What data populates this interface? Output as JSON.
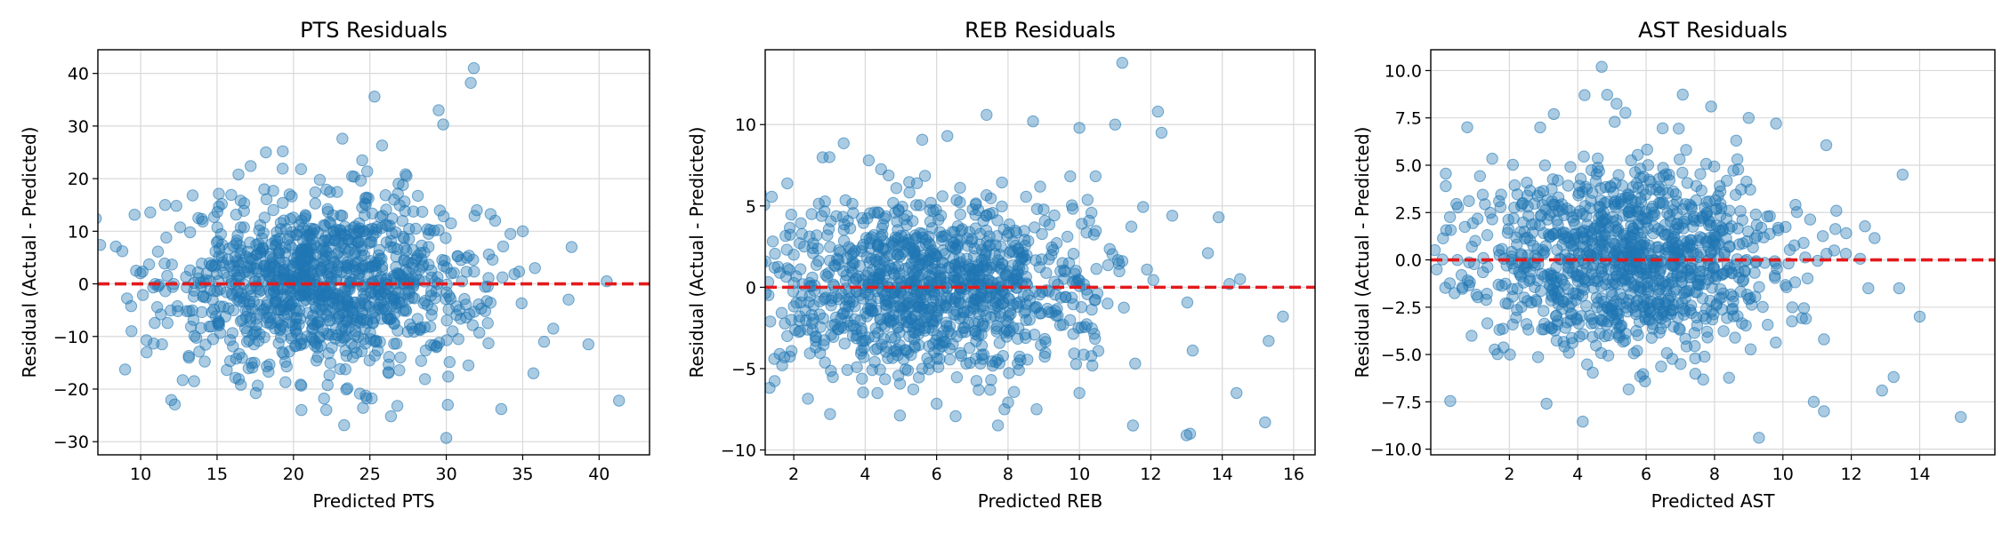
{
  "chart_data": [
    {
      "type": "scatter",
      "title": "PTS Residuals",
      "xlabel": "Predicted PTS",
      "ylabel": "Residual (Actual - Predicted)",
      "xlim": [
        7.2,
        43.3
      ],
      "ylim": [
        -32.5,
        44.5
      ],
      "xticks": [
        10,
        15,
        20,
        25,
        30,
        35,
        40
      ],
      "yticks": [
        -30,
        -20,
        -10,
        0,
        10,
        20,
        30,
        40
      ],
      "grid": true,
      "reference_line": {
        "y": 0,
        "color": "#e31a1c",
        "style": "dashed"
      },
      "point_color": "#1f77b4",
      "cloud": {
        "n": 1100,
        "x_center": 22,
        "x_spread": 5,
        "y_spread": 8
      },
      "points": [
        [
          31.8,
          41
        ],
        [
          31.6,
          38.2
        ],
        [
          25.3,
          35.6
        ],
        [
          29.5,
          33
        ],
        [
          29.8,
          30.3
        ],
        [
          25.8,
          26.3
        ],
        [
          23.2,
          27.6
        ],
        [
          33.2,
          12
        ],
        [
          34.2,
          9.5
        ],
        [
          38.2,
          7
        ],
        [
          35.8,
          3
        ],
        [
          40.5,
          0.5
        ],
        [
          38,
          -3
        ],
        [
          39.3,
          -11.5
        ],
        [
          41.3,
          -22.2
        ],
        [
          35.7,
          -17
        ],
        [
          33.6,
          -23.8
        ],
        [
          30,
          -29.3
        ],
        [
          30.1,
          -23
        ],
        [
          26.8,
          -23.2
        ],
        [
          22,
          -21.8
        ],
        [
          27,
          -14
        ],
        [
          13.5,
          -18.5
        ],
        [
          11.4,
          -11.5
        ],
        [
          9.4,
          -9
        ],
        [
          8.8,
          6.2
        ],
        [
          9.7,
          2.5
        ],
        [
          11.6,
          15
        ],
        [
          13.4,
          16.8
        ],
        [
          14.8,
          12.7
        ],
        [
          16.4,
          20.8
        ],
        [
          17.2,
          22.4
        ],
        [
          18.2,
          25
        ],
        [
          19.3,
          25.2
        ],
        [
          20.5,
          21.8
        ],
        [
          24.5,
          23.5
        ],
        [
          27.4,
          20.5
        ],
        [
          32,
          14
        ],
        [
          35,
          10
        ],
        [
          37,
          -8.5
        ],
        [
          36.4,
          -11
        ]
      ]
    },
    {
      "type": "scatter",
      "title": "REB Residuals",
      "xlabel": "Predicted REB",
      "ylabel": "Residual (Actual - Predicted)",
      "xlim": [
        1.2,
        16.6
      ],
      "ylim": [
        -10.3,
        14.6
      ],
      "xticks": [
        2,
        4,
        6,
        8,
        10,
        12,
        14,
        16
      ],
      "yticks": [
        -10,
        -5,
        0,
        5,
        10
      ],
      "grid": true,
      "reference_line": {
        "y": 0,
        "color": "#e31a1c",
        "style": "dashed"
      },
      "point_color": "#1f77b4",
      "cloud": {
        "n": 1100,
        "x_center": 5.8,
        "x_spread": 2.3,
        "y_spread": 2.8
      },
      "points": [
        [
          11.2,
          13.8
        ],
        [
          12.2,
          10.8
        ],
        [
          12.3,
          9.5
        ],
        [
          11,
          10
        ],
        [
          10,
          9.8
        ],
        [
          8.7,
          10.2
        ],
        [
          7.4,
          10.6
        ],
        [
          6.3,
          9.3
        ],
        [
          13.9,
          4.3
        ],
        [
          14.5,
          0.5
        ],
        [
          15.7,
          -1.8
        ],
        [
          15.3,
          -3.3
        ],
        [
          15.2,
          -8.3
        ],
        [
          14.4,
          -6.5
        ],
        [
          13.1,
          -9
        ],
        [
          13,
          -9.1
        ],
        [
          11.5,
          -8.5
        ],
        [
          10,
          -6.5
        ],
        [
          8.8,
          -7.5
        ],
        [
          7.9,
          -7.5
        ],
        [
          7.5,
          -6.3
        ],
        [
          2,
          2
        ],
        [
          2.5,
          4.5
        ],
        [
          3,
          8
        ],
        [
          4.1,
          7.8
        ],
        [
          12.6,
          4.4
        ],
        [
          13.6,
          2.1
        ],
        [
          14.2,
          0.2
        ]
      ]
    },
    {
      "type": "scatter",
      "title": "AST Residuals",
      "xlabel": "Predicted AST",
      "ylabel": "Residual (Actual - Predicted)",
      "xlim": [
        -0.3,
        16.2
      ],
      "ylim": [
        -10.3,
        11.1
      ],
      "xticks": [
        2,
        4,
        6,
        8,
        10,
        12,
        14
      ],
      "yticks": [
        -10.0,
        -7.5,
        -5.0,
        -2.5,
        0.0,
        2.5,
        5.0,
        7.5,
        10.0
      ],
      "grid": true,
      "reference_line": {
        "y": 0,
        "color": "#e31a1c",
        "style": "dashed"
      },
      "point_color": "#1f77b4",
      "cloud": {
        "n": 1100,
        "x_center": 5.5,
        "x_spread": 2.4,
        "y_spread": 2.6
      },
      "points": [
        [
          4.7,
          10.2
        ],
        [
          4.2,
          8.7
        ],
        [
          7.9,
          8.1
        ],
        [
          9,
          7.5
        ],
        [
          9.8,
          7.2
        ],
        [
          13.5,
          4.5
        ],
        [
          12.9,
          -6.9
        ],
        [
          14,
          -3
        ],
        [
          15.2,
          -8.3
        ],
        [
          9.3,
          -9.4
        ],
        [
          11.2,
          -8
        ],
        [
          10.9,
          -7.5
        ],
        [
          12.5,
          -1.5
        ],
        [
          13.4,
          -1.5
        ],
        [
          0.6,
          -0.8
        ],
        [
          1,
          1
        ],
        [
          1.7,
          3.1
        ],
        [
          2.9,
          7
        ],
        [
          3.3,
          7.7
        ],
        [
          11.5,
          0.5
        ],
        [
          11.2,
          -4.2
        ]
      ]
    }
  ]
}
